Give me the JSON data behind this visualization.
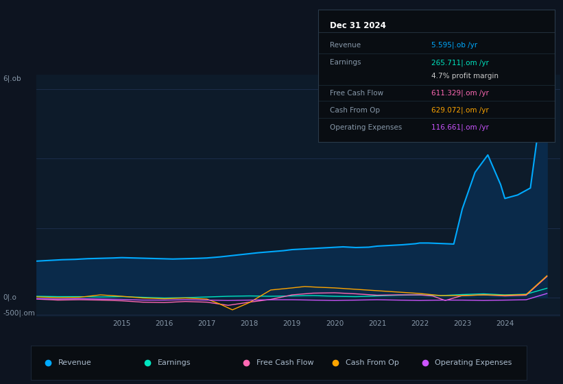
{
  "bg_color": "#0d1420",
  "plot_bg_color": "#0d1b2a",
  "grid_color": "#1e3050",
  "text_color": "#8899aa",
  "title_color": "#ffffff",
  "legend_bg": "#0a0f16",
  "legend_border": "#1a2a3a",
  "info_box": {
    "title": "Dec 31 2024",
    "rows": [
      {
        "label": "Revenue",
        "value": "5.595|.ob /yr",
        "color": "#00aaff"
      },
      {
        "label": "Earnings",
        "value": "265.711|.om /yr",
        "color": "#00e5c0"
      },
      {
        "label": "",
        "value": "4.7% profit margin",
        "color": "#cccccc"
      },
      {
        "label": "Free Cash Flow",
        "value": "611.329|.om /yr",
        "color": "#ff69b4"
      },
      {
        "label": "Cash From Op",
        "value": "629.072|.om /yr",
        "color": "#ffa500"
      },
      {
        "label": "Operating Expenses",
        "value": "116.661|.om /yr",
        "color": "#cc55ff"
      }
    ]
  },
  "ylabel_top": "6|.ob",
  "ylabel_zero": "0|.o",
  "ylabel_bottom": "-500|.om",
  "xlabel_ticks": [
    2015,
    2016,
    2017,
    2018,
    2019,
    2020,
    2021,
    2022,
    2023,
    2024
  ],
  "Revenue_x": [
    2013.0,
    2013.3,
    2013.6,
    2013.9,
    2014.2,
    2014.5,
    2014.8,
    2015.0,
    2015.3,
    2015.6,
    2015.9,
    2016.2,
    2016.5,
    2016.8,
    2017.0,
    2017.3,
    2017.6,
    2017.9,
    2018.2,
    2018.5,
    2018.8,
    2019.0,
    2019.3,
    2019.6,
    2019.9,
    2020.2,
    2020.5,
    2020.8,
    2021.0,
    2021.3,
    2021.6,
    2021.9,
    2022.0,
    2022.2,
    2022.4,
    2022.6,
    2022.8,
    2023.0,
    2023.3,
    2023.6,
    2023.9,
    2024.0,
    2024.3,
    2024.6,
    2024.85,
    2024.99
  ],
  "Revenue_y": [
    1.05,
    1.07,
    1.09,
    1.1,
    1.12,
    1.13,
    1.14,
    1.15,
    1.14,
    1.13,
    1.12,
    1.11,
    1.12,
    1.13,
    1.14,
    1.17,
    1.21,
    1.25,
    1.29,
    1.32,
    1.35,
    1.38,
    1.4,
    1.42,
    1.44,
    1.46,
    1.44,
    1.45,
    1.48,
    1.5,
    1.52,
    1.55,
    1.57,
    1.57,
    1.56,
    1.55,
    1.54,
    2.55,
    3.6,
    4.1,
    3.25,
    2.85,
    2.95,
    3.15,
    5.4,
    5.6
  ],
  "Earnings_x": [
    2013.0,
    2013.5,
    2014.0,
    2014.5,
    2015.0,
    2015.5,
    2016.0,
    2016.5,
    2017.0,
    2017.5,
    2018.0,
    2018.5,
    2019.0,
    2019.5,
    2020.0,
    2020.5,
    2021.0,
    2021.5,
    2022.0,
    2022.5,
    2023.0,
    2023.5,
    2024.0,
    2024.5,
    2024.99
  ],
  "Earnings_y": [
    0.04,
    0.03,
    0.03,
    0.02,
    0.03,
    0.01,
    -0.01,
    0.0,
    0.02,
    0.04,
    0.05,
    0.04,
    0.05,
    0.06,
    0.04,
    0.03,
    0.05,
    0.07,
    0.08,
    0.06,
    0.09,
    0.11,
    0.08,
    0.1,
    0.27
  ],
  "FCF_x": [
    2013.0,
    2013.5,
    2014.0,
    2014.5,
    2015.0,
    2015.5,
    2016.0,
    2016.5,
    2017.0,
    2017.5,
    2018.0,
    2018.5,
    2019.0,
    2019.5,
    2020.0,
    2020.5,
    2021.0,
    2021.5,
    2022.0,
    2022.3,
    2022.6,
    2023.0,
    2023.5,
    2024.0,
    2024.5,
    2024.99
  ],
  "FCF_y": [
    -0.04,
    -0.07,
    -0.06,
    -0.07,
    -0.09,
    -0.13,
    -0.14,
    -0.11,
    -0.13,
    -0.22,
    -0.13,
    -0.05,
    0.08,
    0.13,
    0.14,
    0.11,
    0.07,
    0.08,
    0.08,
    0.05,
    -0.08,
    0.06,
    0.08,
    0.05,
    0.07,
    0.61
  ],
  "CashFromOp_x": [
    2013.0,
    2013.5,
    2014.0,
    2014.5,
    2015.0,
    2015.5,
    2016.0,
    2016.5,
    2017.0,
    2017.3,
    2017.6,
    2018.0,
    2018.5,
    2019.0,
    2019.3,
    2019.6,
    2020.0,
    2020.5,
    2021.0,
    2021.5,
    2022.0,
    2022.5,
    2023.0,
    2023.5,
    2024.0,
    2024.5,
    2024.99
  ],
  "CashFromOp_y": [
    0.02,
    0.0,
    0.01,
    0.08,
    0.04,
    -0.01,
    -0.03,
    -0.01,
    -0.04,
    -0.18,
    -0.35,
    -0.14,
    0.22,
    0.28,
    0.32,
    0.3,
    0.28,
    0.24,
    0.2,
    0.16,
    0.12,
    0.06,
    0.06,
    0.08,
    0.07,
    0.09,
    0.63
  ],
  "OpEx_x": [
    2013.0,
    2013.5,
    2014.0,
    2014.5,
    2015.0,
    2015.5,
    2016.0,
    2016.5,
    2017.0,
    2017.5,
    2018.0,
    2018.5,
    2019.0,
    2019.5,
    2020.0,
    2020.5,
    2021.0,
    2021.5,
    2022.0,
    2022.5,
    2023.0,
    2023.5,
    2024.0,
    2024.5,
    2024.99
  ],
  "OpEx_y": [
    -0.03,
    -0.04,
    -0.03,
    -0.04,
    -0.05,
    -0.07,
    -0.07,
    -0.06,
    -0.07,
    -0.08,
    -0.07,
    -0.06,
    -0.06,
    -0.07,
    -0.08,
    -0.07,
    -0.06,
    -0.07,
    -0.08,
    -0.07,
    -0.07,
    -0.08,
    -0.07,
    -0.06,
    0.12
  ],
  "ylim": [
    -0.55,
    6.4
  ],
  "xlim": [
    2013.0,
    2025.3
  ],
  "legend": [
    {
      "label": "Revenue",
      "color": "#00aaff"
    },
    {
      "label": "Earnings",
      "color": "#00e5c0"
    },
    {
      "label": "Free Cash Flow",
      "color": "#ff69b4"
    },
    {
      "label": "Cash From Op",
      "color": "#ffa500"
    },
    {
      "label": "Operating Expenses",
      "color": "#cc55ff"
    }
  ]
}
